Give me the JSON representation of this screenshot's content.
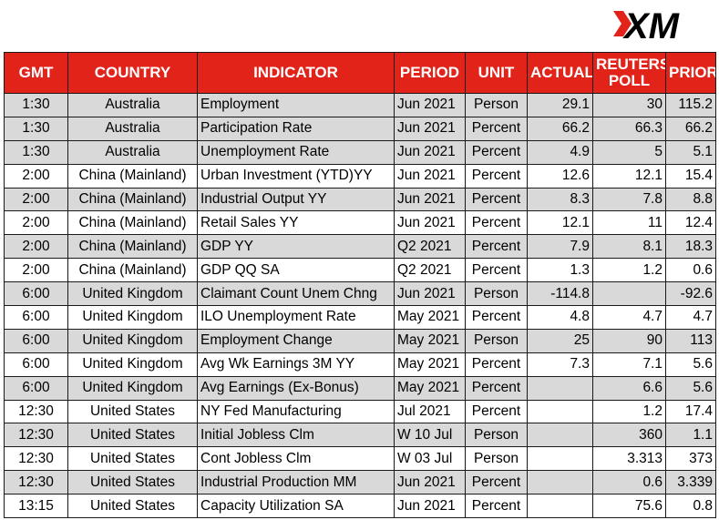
{
  "brand": {
    "logo_text": "XM",
    "accent_color": "#e2231a"
  },
  "table": {
    "headers": [
      "GMT",
      "COUNTRY",
      "INDICATOR",
      "PERIOD",
      "UNIT",
      "ACTUAL",
      "REUTERS POLL",
      "PRIOR"
    ],
    "rows": [
      [
        "1:30",
        "Australia",
        "Employment",
        "Jun 2021",
        "Person",
        "29.1",
        "30",
        "115.2"
      ],
      [
        "1:30",
        "Australia",
        "Participation Rate",
        "Jun 2021",
        "Percent",
        "66.2",
        "66.3",
        "66.2"
      ],
      [
        "1:30",
        "Australia",
        "Unemployment Rate",
        "Jun 2021",
        "Percent",
        "4.9",
        "5",
        "5.1"
      ],
      [
        "2:00",
        "China (Mainland)",
        "Urban Investment (YTD)YY",
        "Jun 2021",
        "Percent",
        "12.6",
        "12.1",
        "15.4"
      ],
      [
        "2:00",
        "China (Mainland)",
        "Industrial Output YY",
        "Jun 2021",
        "Percent",
        "8.3",
        "7.8",
        "8.8"
      ],
      [
        "2:00",
        "China (Mainland)",
        "Retail Sales YY",
        "Jun 2021",
        "Percent",
        "12.1",
        "11",
        "12.4"
      ],
      [
        "2:00",
        "China (Mainland)",
        "GDP YY",
        "Q2 2021",
        "Percent",
        "7.9",
        "8.1",
        "18.3"
      ],
      [
        "2:00",
        "China (Mainland)",
        "GDP QQ SA",
        "Q2 2021",
        "Percent",
        "1.3",
        "1.2",
        "0.6"
      ],
      [
        "6:00",
        "United Kingdom",
        "Claimant Count Unem Chng",
        "Jun 2021",
        "Person",
        "-114.8",
        "",
        "-92.6"
      ],
      [
        "6:00",
        "United Kingdom",
        "ILO Unemployment Rate",
        "May 2021",
        "Percent",
        "4.8",
        "4.7",
        "4.7"
      ],
      [
        "6:00",
        "United Kingdom",
        "Employment Change",
        "May 2021",
        "Person",
        "25",
        "90",
        "113"
      ],
      [
        "6:00",
        "United Kingdom",
        "Avg Wk Earnings 3M YY",
        "May 2021",
        "Percent",
        "7.3",
        "7.1",
        "5.6"
      ],
      [
        "6:00",
        "United Kingdom",
        "Avg Earnings (Ex-Bonus)",
        "May 2021",
        "Percent",
        "",
        "6.6",
        "5.6"
      ],
      [
        "12:30",
        "United States",
        "NY Fed Manufacturing",
        "Jul 2021",
        "Percent",
        "",
        "1.2",
        "17.4"
      ],
      [
        "12:30",
        "United States",
        "Initial Jobless Clm",
        "W 10 Jul",
        "Person",
        "",
        "360",
        "1.1"
      ],
      [
        "12:30",
        "United States",
        "Cont Jobless Clm",
        "W 03 Jul",
        "Person",
        "",
        "3.313",
        "373"
      ],
      [
        "12:30",
        "United States",
        "Industrial Production MM",
        "Jun 2021",
        "Percent",
        "",
        "0.6",
        "3.339"
      ],
      [
        "13:15",
        "United States",
        "Capacity Utilization SA",
        "Jun 2021",
        "Percent",
        "",
        "75.6",
        "0.8"
      ]
    ],
    "shaded_rows": [
      0,
      1,
      2,
      4,
      6,
      8,
      10,
      12,
      14,
      16
    ],
    "header_color": "#e2231a",
    "shade_color": "#d9d9d9"
  }
}
